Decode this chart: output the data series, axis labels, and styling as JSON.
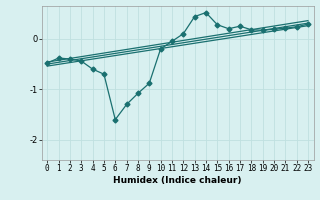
{
  "xlabel": "Humidex (Indice chaleur)",
  "bg_color": "#d8f0f0",
  "line_color": "#1a7070",
  "grid_color": "#c0e0e0",
  "xlim": [
    -0.5,
    23.5
  ],
  "ylim": [
    -2.4,
    0.65
  ],
  "x_ticks": [
    0,
    1,
    2,
    3,
    4,
    5,
    6,
    7,
    8,
    9,
    10,
    11,
    12,
    13,
    14,
    15,
    16,
    17,
    18,
    19,
    20,
    21,
    22,
    23
  ],
  "y_ticks": [
    0,
    -1,
    -2
  ],
  "data_x": [
    0,
    1,
    2,
    3,
    4,
    5,
    6,
    7,
    8,
    9,
    10,
    11,
    12,
    13,
    14,
    15,
    16,
    17,
    18,
    19,
    20,
    21,
    22,
    23
  ],
  "data_y": [
    -0.48,
    -0.38,
    -0.4,
    -0.44,
    -0.6,
    -0.7,
    -1.6,
    -1.3,
    -1.08,
    -0.88,
    -0.2,
    -0.05,
    0.1,
    0.44,
    0.52,
    0.28,
    0.2,
    0.25,
    0.18,
    0.17,
    0.19,
    0.21,
    0.24,
    0.29
  ],
  "reg_lines": [
    {
      "x0": 0,
      "x1": 23,
      "y0": -0.54,
      "y1": 0.26
    },
    {
      "x0": 0,
      "x1": 23,
      "y0": -0.5,
      "y1": 0.31
    },
    {
      "x0": 0,
      "x1": 23,
      "y0": -0.46,
      "y1": 0.36
    }
  ],
  "marker_size": 2.5,
  "line_width": 0.9,
  "tick_fontsize": 5.5,
  "xlabel_fontsize": 6.5
}
